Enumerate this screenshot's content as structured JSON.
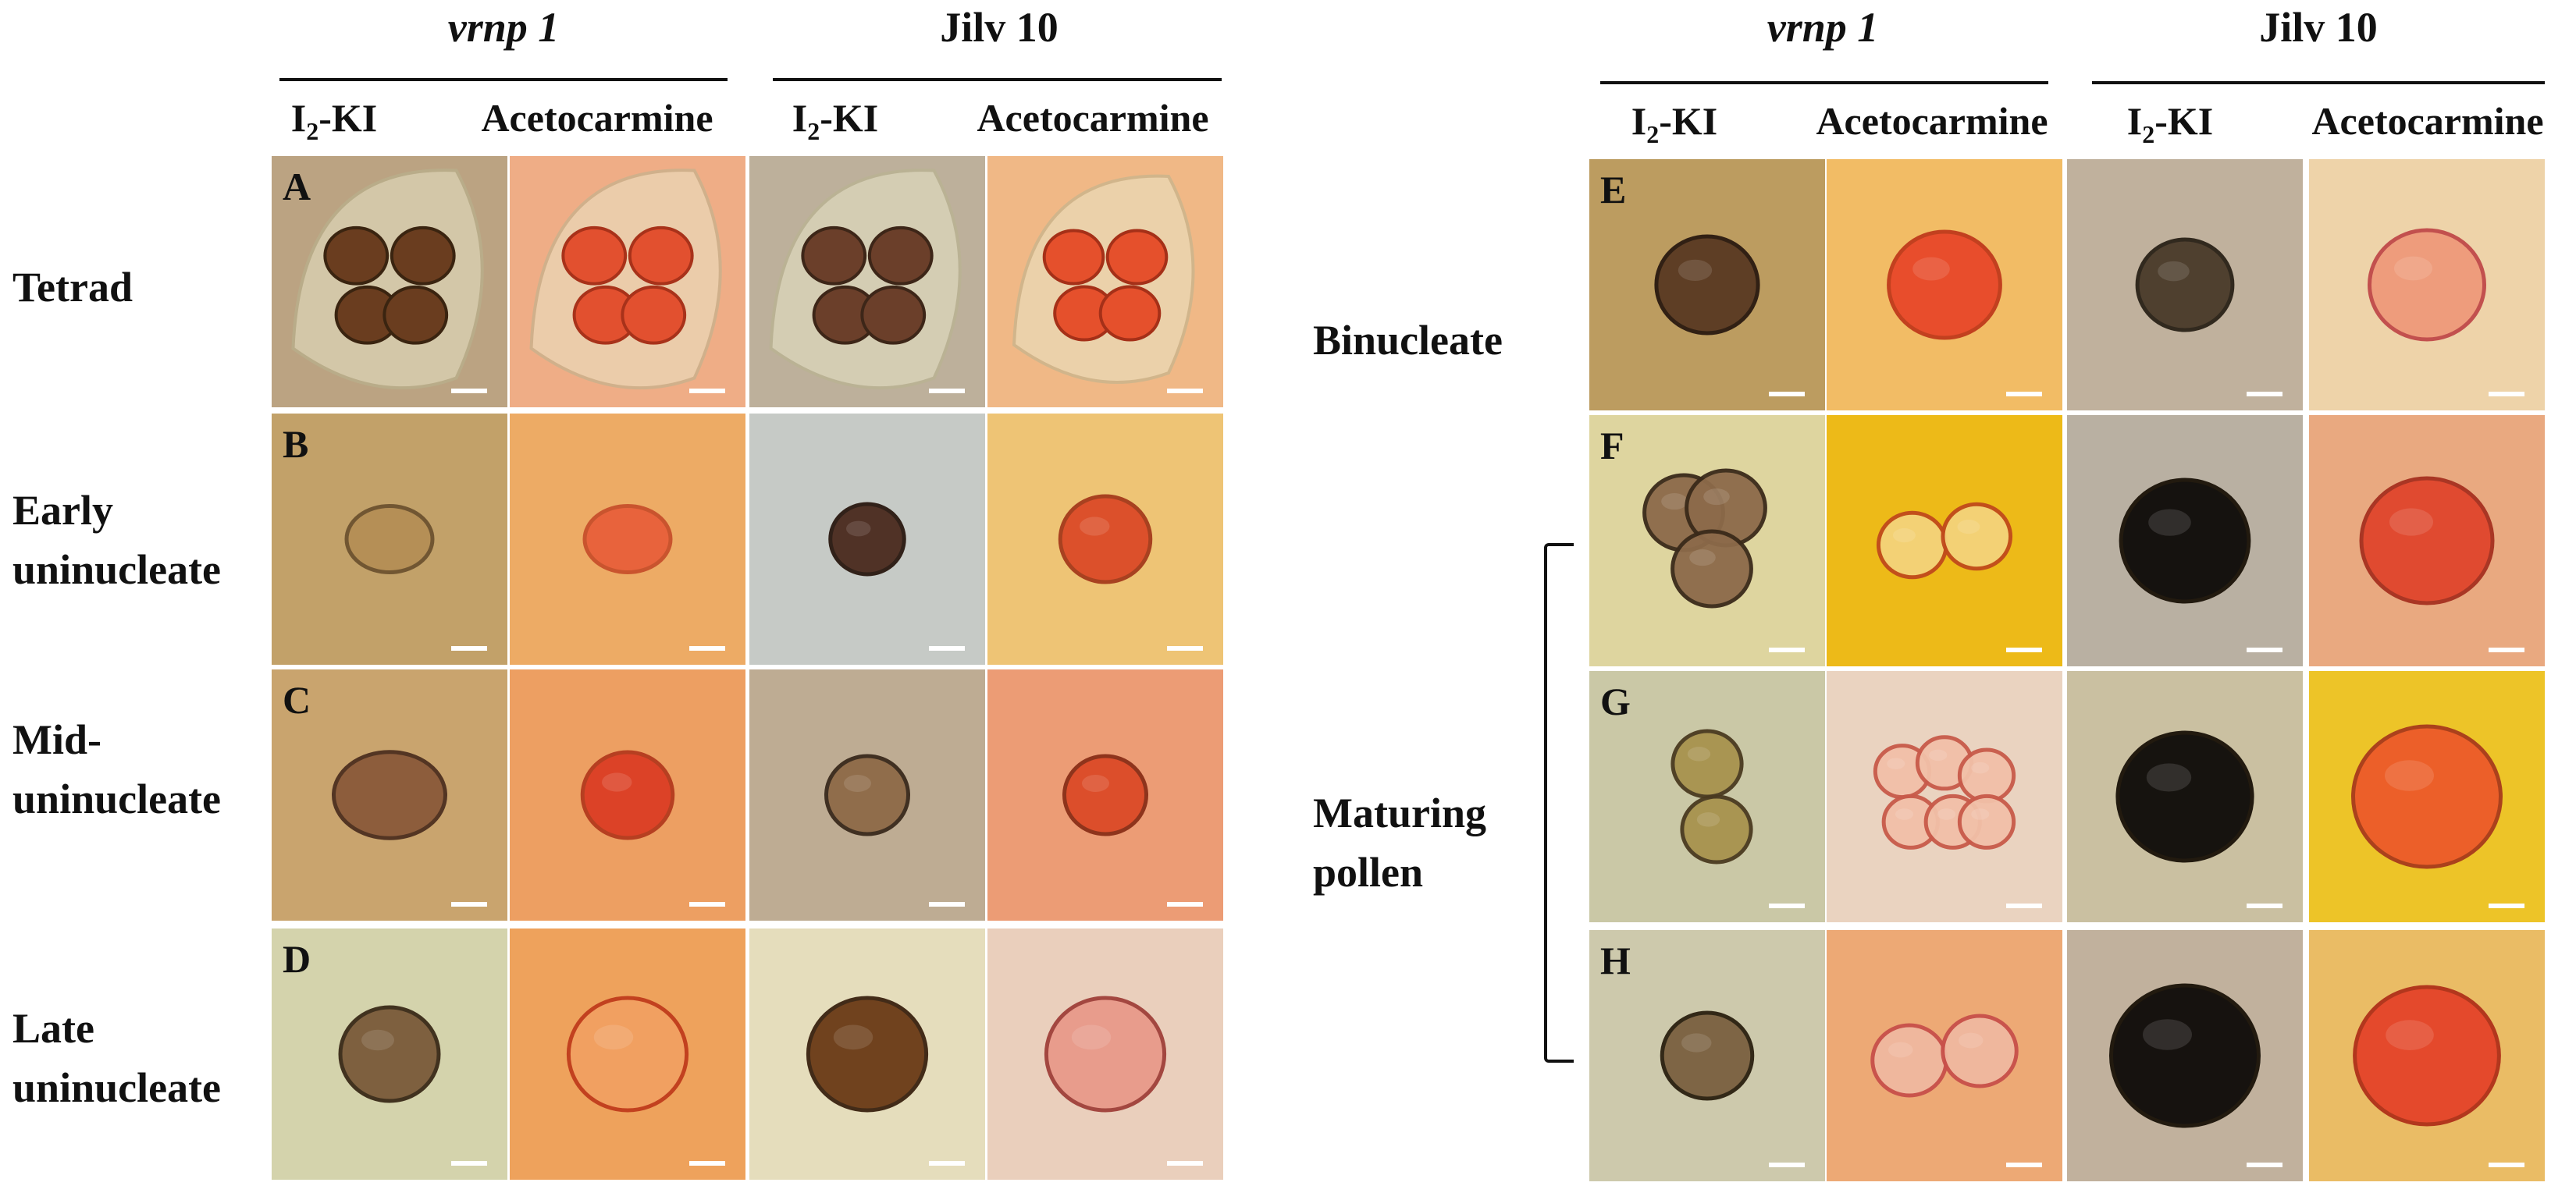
{
  "left_block": {
    "genotypes": [
      "vrnp 1",
      "Jilv 10"
    ],
    "stains": [
      "I2-KI",
      "Acetocarmine",
      "I2-KI",
      "Acetocarmine"
    ],
    "stages": [
      "Tetrad",
      "Early uninucleate",
      "Mid-uninucleate",
      "Late uninucleate"
    ],
    "stage_lines": [
      [
        "Tetrad"
      ],
      [
        "Early",
        "uninucleate"
      ],
      [
        "Mid-",
        "uninucleate"
      ],
      [
        "Late",
        "uninucleate"
      ]
    ],
    "panel_letters": [
      "A",
      "B",
      "C",
      "D"
    ]
  },
  "right_block": {
    "genotypes": [
      "vrnp 1",
      "Jilv 10"
    ],
    "stains": [
      "I2-KI",
      "Acetocarmine",
      "I2-KI",
      "Acetocarmine"
    ],
    "stages": [
      "Binucleate",
      "Maturing pollen"
    ],
    "stage_lines": [
      [
        "Binucleate"
      ],
      [
        "Maturing",
        "pollen"
      ]
    ],
    "panel_letters": [
      "E",
      "F",
      "G",
      "H"
    ]
  },
  "panel_colors": {
    "iodine_bg_vrnp": "#c9b287",
    "iodine_bg_jilv": "#c8bca4",
    "acetocarmine_bg": "#f7b87a",
    "pollen_brown": "#5a3a1c",
    "pollen_red": "#d8452a",
    "pollen_black": "#0d0a08"
  },
  "scale_bar_color": "#ffffff"
}
